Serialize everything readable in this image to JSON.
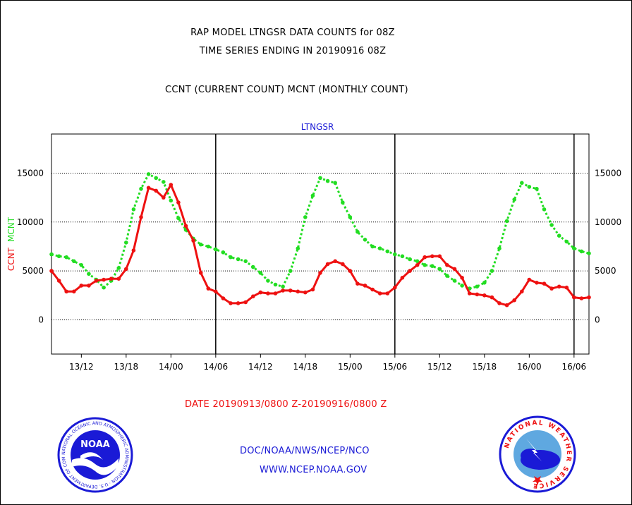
{
  "header": {
    "line1": "RAP MODEL LTNGSR DATA COUNTS for 08Z",
    "line2": "TIME SERIES ENDING IN 20190916 08Z",
    "line3": "CCNT (CURRENT COUNT) MCNT (MONTHLY COUNT)"
  },
  "footer": {
    "date_range": "DATE 20190913/0800 Z-20190916/0800 Z",
    "org": "DOC/NOAA/NWS/NCEP/NCO",
    "url": "WWW.NCEP.NOAA.GOV"
  },
  "logos": {
    "noaa_text": "NOAA",
    "noaa_ring": "NATIONAL OCEANIC AND ATMOSPHERIC ADMINISTRATION · U.S. DEPARTMENT OF COMMERCE",
    "nws_ring": "NATIONAL WEATHER SERVICE"
  },
  "colors": {
    "ccnt": "#ee1111",
    "mcnt": "#22dd22",
    "axis": "#000000",
    "blue_text": "#1a1ad6"
  },
  "chart_data": {
    "type": "line",
    "title": "LTNGSR",
    "ylabel_left_parts": [
      {
        "text": "CCNT",
        "color": "#ee1111"
      },
      {
        "text": "MCNT",
        "color": "#22dd22"
      }
    ],
    "ylim": [
      -3500,
      19000
    ],
    "yticks": [
      0,
      5000,
      10000,
      15000
    ],
    "ytick_labels": [
      "0",
      "5000",
      "10000",
      "15000"
    ],
    "grid": "horizontal dotted at y ticks",
    "x_range_hours": [
      0,
      72
    ],
    "xticks_hours": [
      4,
      10,
      16,
      22,
      28,
      34,
      40,
      46,
      52,
      58,
      64,
      70
    ],
    "xtick_labels": [
      "13/12",
      "13/18",
      "14/00",
      "14/06",
      "14/12",
      "14/18",
      "15/00",
      "15/06",
      "15/12",
      "15/18",
      "16/00",
      "16/06"
    ],
    "day_boundaries_hours": [
      22,
      46,
      70
    ],
    "series": [
      {
        "name": "CCNT",
        "color": "#ee1111",
        "style": "solid",
        "x": [
          0,
          1,
          2,
          3,
          4,
          5,
          6,
          7,
          8,
          9,
          10,
          11,
          12,
          13,
          14,
          15,
          16,
          17,
          18,
          19,
          20,
          21,
          22,
          23,
          24,
          25,
          26,
          27,
          28,
          29,
          30,
          31,
          32,
          33,
          34,
          35,
          36,
          37,
          38,
          39,
          40,
          41,
          42,
          43,
          44,
          45,
          46,
          47,
          48,
          49,
          50,
          51,
          52,
          53,
          54,
          55,
          56,
          57,
          58,
          59,
          60,
          61,
          62,
          63,
          64,
          65,
          66,
          67,
          68,
          69,
          70,
          71,
          72
        ],
        "values": [
          5000,
          4000,
          2900,
          2900,
          3500,
          3500,
          4000,
          4100,
          4200,
          4200,
          5200,
          7100,
          10500,
          13500,
          13200,
          12500,
          13800,
          12000,
          9600,
          8100,
          4800,
          3200,
          2900,
          2200,
          1700,
          1700,
          1800,
          2400,
          2800,
          2700,
          2700,
          3000,
          3000,
          2900,
          2800,
          3100,
          4800,
          5700,
          6000,
          5700,
          5000,
          3700,
          3500,
          3100,
          2700,
          2700,
          3300,
          4300,
          5000,
          5600,
          6400,
          6500,
          6500,
          5600,
          5200,
          4300,
          2700,
          2600,
          2500,
          2300,
          1700,
          1500,
          2000,
          2900,
          4100,
          3800,
          3700,
          3200,
          3400,
          3300,
          2300,
          2200,
          2300
        ]
      },
      {
        "name": "MCNT",
        "color": "#22dd22",
        "style": "dotted",
        "x": [
          0,
          1,
          2,
          3,
          4,
          5,
          6,
          7,
          8,
          9,
          10,
          11,
          12,
          13,
          14,
          15,
          16,
          17,
          18,
          19,
          20,
          21,
          22,
          23,
          24,
          25,
          26,
          27,
          28,
          29,
          30,
          31,
          32,
          33,
          34,
          35,
          36,
          37,
          38,
          39,
          40,
          41,
          42,
          43,
          44,
          45,
          46,
          47,
          48,
          49,
          50,
          51,
          52,
          53,
          54,
          55,
          56,
          57,
          58,
          59,
          60,
          61,
          62,
          63,
          64,
          65,
          66,
          67,
          68,
          69,
          70,
          71,
          72
        ],
        "values": [
          6700,
          6500,
          6400,
          6000,
          5600,
          4700,
          4100,
          3300,
          4000,
          5300,
          7900,
          11300,
          13400,
          14900,
          14500,
          14100,
          12200,
          10400,
          9200,
          8300,
          7700,
          7500,
          7200,
          6900,
          6400,
          6200,
          6000,
          5400,
          4800,
          4000,
          3600,
          3400,
          5000,
          7300,
          10500,
          12700,
          14500,
          14200,
          14000,
          12000,
          10500,
          9000,
          8200,
          7500,
          7300,
          7000,
          6700,
          6500,
          6200,
          6000,
          5600,
          5500,
          5200,
          4500,
          4000,
          3500,
          3200,
          3400,
          3800,
          5000,
          7300,
          10100,
          12300,
          14000,
          13600,
          13400,
          11300,
          9700,
          8600,
          8000,
          7300,
          7000,
          6800
        ]
      }
    ]
  }
}
